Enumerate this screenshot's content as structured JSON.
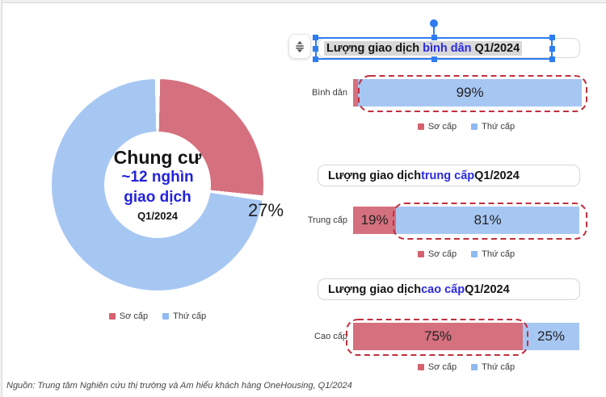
{
  "colors": {
    "primary": "#d5707e",
    "secondary": "#a7c7f3",
    "legend_primary": "#d4626f",
    "legend_secondary": "#90baf1",
    "accent_text": "#2b2bdf",
    "selection_blue": "#2e7cf0",
    "highlight_dash_red": "#c0303f"
  },
  "legend": {
    "primary": "Sơ cấp",
    "secondary": "Thứ cấp"
  },
  "donut": {
    "center_line1": "Chung cư",
    "center_line2": "~12 nghìn",
    "center_line3": "giao dịch",
    "center_line4": "Q1/2024",
    "label_primary": "27%",
    "label_secondary": "73%"
  },
  "bar_charts": [
    {
      "title_prefix": "Lượng giao dịch ",
      "title_accent": "bình dân",
      "title_suffix": " Q1/2024",
      "row_label": "Bình dân",
      "primary_label": "",
      "secondary_label": "99%"
    },
    {
      "title_prefix": "Lượng giao dịch ",
      "title_accent": "trung cấp",
      "title_suffix": " Q1/2024",
      "row_label": "Trung cấp",
      "primary_label": "19%",
      "secondary_label": "81%"
    },
    {
      "title_prefix": "Lượng giao dịch ",
      "title_accent": "cao cấp",
      "title_suffix": " Q1/2024",
      "row_label": "Cao cấp",
      "primary_label": "75%",
      "secondary_label": "25%"
    }
  ],
  "source": "Nguồn: Trung tâm Nghiên cứu thị trường và Am hiểu khách hàng OneHousing, Q1/2024",
  "chart_data": [
    {
      "type": "pie",
      "subtype": "donut",
      "title": "Chung cư ~12 nghìn giao dịch Q1/2024",
      "categories": [
        "Sơ cấp",
        "Thứ cấp"
      ],
      "values": [
        27,
        73
      ],
      "unit": "%",
      "legend_position": "bottom"
    },
    {
      "type": "bar",
      "orientation": "horizontal",
      "stacked": true,
      "title": "Lượng giao dịch bình dân Q1/2024",
      "categories": [
        "Bình dân"
      ],
      "series": [
        {
          "name": "Sơ cấp",
          "values": [
            1
          ]
        },
        {
          "name": "Thứ cấp",
          "values": [
            99
          ]
        }
      ],
      "unit": "%",
      "xlim": [
        0,
        100
      ],
      "legend_position": "bottom",
      "highlighted_series": "Thứ cấp"
    },
    {
      "type": "bar",
      "orientation": "horizontal",
      "stacked": true,
      "title": "Lượng giao dịch trung cấp Q1/2024",
      "categories": [
        "Trung cấp"
      ],
      "series": [
        {
          "name": "Sơ cấp",
          "values": [
            19
          ]
        },
        {
          "name": "Thứ cấp",
          "values": [
            81
          ]
        }
      ],
      "unit": "%",
      "xlim": [
        0,
        100
      ],
      "legend_position": "bottom",
      "highlighted_series": "Thứ cấp"
    },
    {
      "type": "bar",
      "orientation": "horizontal",
      "stacked": true,
      "title": "Lượng giao dịch cao cấp Q1/2024",
      "categories": [
        "Cao cấp"
      ],
      "series": [
        {
          "name": "Sơ cấp",
          "values": [
            75
          ]
        },
        {
          "name": "Thứ cấp",
          "values": [
            25
          ]
        }
      ],
      "unit": "%",
      "xlim": [
        0,
        100
      ],
      "legend_position": "bottom",
      "highlighted_series": "Sơ cấp"
    }
  ]
}
